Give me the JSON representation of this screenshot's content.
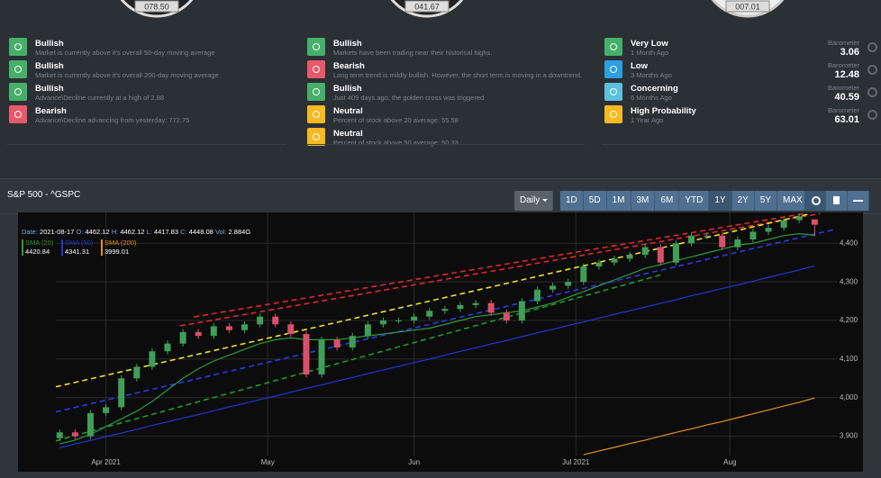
{
  "gauges": [
    "078.50",
    "041.67",
    "007.01"
  ],
  "signals": [
    [
      {
        "title": "Bullish",
        "text": "Market is currently above it's overall 50-day moving average",
        "color": "#46b06a"
      },
      {
        "title": "Bullish",
        "text": "Market is currently above it's overall 200-day moving average",
        "color": "#46b06a"
      },
      {
        "title": "Bullish",
        "text": "Advance\\Decline currently at a high of 2.88",
        "color": "#46b06a"
      },
      {
        "title": "Bearish",
        "text": "Advance\\Decline advancing from yesterday: 772.75",
        "color": "#e8596a"
      }
    ],
    [
      {
        "title": "Bullish",
        "text": "Markets have been trading near their historical highs.",
        "color": "#46b06a"
      },
      {
        "title": "Bearish",
        "text": "Long term trend is mildly bullish. However, the short term is moving in a downtrend.",
        "color": "#e8596a"
      },
      {
        "title": "Bullish",
        "text": "Just 409 days ago, the golden cross was triggered",
        "color": "#46b06a"
      },
      {
        "title": "Neutral",
        "text": "Percent of stock above 20 average: 55.58",
        "color": "#f5b921"
      },
      {
        "title": "Neutral",
        "text": "Percent of stock above 50 average: 50.33",
        "color": "#f5b921"
      }
    ]
  ],
  "risk": [
    {
      "title": "Very Low",
      "subtitle": "1 Month Ago",
      "label": "Barometer",
      "value": "3.06",
      "color": "#46b06a"
    },
    {
      "title": "Low",
      "subtitle": "3 Months Ago",
      "label": "Barometer",
      "value": "12.48",
      "color": "#2d9ee0"
    },
    {
      "title": "Concerning",
      "subtitle": "6 Months Ago",
      "label": "Barometer",
      "value": "40.59",
      "color": "#5bc0de"
    },
    {
      "title": "High Probability",
      "subtitle": "1 Year Ago",
      "label": "Barometer",
      "value": "63.01",
      "color": "#f5b921"
    }
  ],
  "panel": {
    "title": "S&P 500 - ^GSPC",
    "interval": "Daily",
    "ranges": [
      "1D",
      "5D",
      "1M",
      "3M",
      "6M",
      "YTD",
      "1Y",
      "2Y",
      "5Y",
      "MAX"
    ],
    "active_range": "1Y"
  },
  "chart_data": {
    "type": "candlestick",
    "info_labels": [
      "Date:",
      "O:",
      "H:",
      "L:",
      "C:",
      "Vol:"
    ],
    "date": "2021-08-17",
    "volume": "2.884G",
    "x": [
      2,
      4,
      6,
      8,
      10,
      12,
      14,
      16,
      18,
      20,
      22,
      24,
      26,
      28,
      30,
      32,
      34,
      36,
      38,
      40,
      42,
      44,
      46,
      48,
      50,
      52,
      54,
      56,
      58,
      60,
      62,
      64,
      66,
      68,
      70,
      72,
      74,
      76,
      78,
      80,
      82,
      84,
      86,
      88,
      90,
      92,
      94,
      96,
      98,
      100
    ],
    "open": [
      3895,
      3910,
      3900,
      3960,
      3975,
      4050,
      4080,
      4120,
      4140,
      4170,
      4160,
      4185,
      4175,
      4190,
      4210,
      4190,
      4165,
      4060,
      4150,
      4130,
      4160,
      4190,
      4200,
      4200,
      4210,
      4225,
      4230,
      4240,
      4245,
      4220,
      4200,
      4250,
      4280,
      4290,
      4300,
      4340,
      4350,
      4360,
      4370,
      4390,
      4350,
      4400,
      4420,
      4420,
      4390,
      4410,
      4430,
      4440,
      4460,
      4462.12
    ],
    "high": [
      3918,
      3918,
      3968,
      3983,
      4058,
      4088,
      4128,
      4148,
      4178,
      4178,
      4193,
      4193,
      4198,
      4218,
      4218,
      4198,
      4173,
      4158,
      4158,
      4168,
      4198,
      4208,
      4208,
      4218,
      4233,
      4238,
      4248,
      4253,
      4253,
      4228,
      4258,
      4288,
      4298,
      4308,
      4348,
      4358,
      4368,
      4378,
      4398,
      4398,
      4408,
      4428,
      4428,
      4428,
      4418,
      4438,
      4448,
      4468,
      4478,
      4462.12
    ],
    "low": [
      3887,
      3892,
      3892,
      3952,
      3967,
      4042,
      4072,
      4112,
      4132,
      4152,
      4152,
      4167,
      4167,
      4182,
      4182,
      4157,
      4052,
      4052,
      4122,
      4122,
      4152,
      4182,
      4192,
      4192,
      4202,
      4217,
      4222,
      4232,
      4212,
      4192,
      4192,
      4242,
      4272,
      4282,
      4292,
      4332,
      4342,
      4352,
      4362,
      4342,
      4342,
      4392,
      4412,
      4382,
      4382,
      4402,
      4422,
      4432,
      4452,
      4417.83
    ],
    "close": [
      3910,
      3900,
      3960,
      3975,
      4050,
      4080,
      4120,
      4140,
      4170,
      4160,
      4185,
      4175,
      4190,
      4210,
      4190,
      4165,
      4060,
      4150,
      4130,
      4160,
      4190,
      4200,
      4200,
      4210,
      4225,
      4230,
      4240,
      4245,
      4220,
      4200,
      4250,
      4280,
      4290,
      4300,
      4340,
      4350,
      4360,
      4370,
      4390,
      4350,
      4400,
      4420,
      4420,
      4390,
      4410,
      4430,
      4440,
      4460,
      4470,
      4448.08
    ],
    "up_color": "#3f9e57",
    "down_color": "#d9506a",
    "lines": [
      {
        "name": "SMA (20)",
        "color": "#2e9a3a",
        "values": [
          3880,
          3890,
          3905,
          3925,
          3945,
          3965,
          3990,
          4020,
          4050,
          4075,
          4095,
          4110,
          4125,
          4140,
          4150,
          4155,
          4150,
          4150,
          4150,
          4155,
          4160,
          4165,
          4170,
          4175,
          4180,
          4190,
          4200,
          4210,
          4215,
          4220,
          4225,
          4235,
          4245,
          4260,
          4275,
          4290,
          4305,
          4320,
          4335,
          4345,
          4355,
          4365,
          4375,
          4385,
          4395,
          4400,
          4410,
          4420,
          4425,
          4420.84
        ]
      },
      {
        "name": "SMA (50)",
        "color": "#2437d6",
        "values": [
          3870,
          3880,
          3889,
          3899,
          3908,
          3918,
          3928,
          3937,
          3947,
          3956,
          3966,
          3976,
          3985,
          3995,
          4004,
          4014,
          4024,
          4033,
          4043,
          4052,
          4062,
          4072,
          4081,
          4091,
          4100,
          4110,
          4120,
          4129,
          4139,
          4148,
          4158,
          4168,
          4177,
          4187,
          4196,
          4206,
          4216,
          4225,
          4235,
          4244,
          4254,
          4264,
          4273,
          4283,
          4292,
          4302,
          4312,
          4321,
          4331,
          4341.31
        ]
      },
      {
        "name": "SMA (200)",
        "color": "#e8901c",
        "values": [
          null,
          null,
          null,
          null,
          null,
          null,
          null,
          null,
          null,
          null,
          null,
          null,
          null,
          null,
          null,
          null,
          null,
          null,
          null,
          null,
          null,
          null,
          null,
          null,
          null,
          null,
          null,
          null,
          null,
          null,
          null,
          null,
          null,
          null,
          3852,
          3862,
          3871,
          3881,
          3890,
          3900,
          3910,
          3919,
          3929,
          3938,
          3948,
          3958,
          3968,
          3978,
          3988,
          3999.01
        ]
      }
    ],
    "trendlines": [
      {
        "color": "#e0262a",
        "x": [
          17.6,
          100.7
        ],
        "y": [
          4186,
          4477
        ]
      },
      {
        "color": "#e0262a",
        "x": [
          19.4,
          98.9
        ],
        "y": [
          4209,
          4478
        ]
      },
      {
        "color": "#f0e02a",
        "x": [
          1.5,
          99.5
        ],
        "y": [
          4028,
          4477
        ]
      },
      {
        "color": "#2a3be8",
        "x": [
          1.5,
          102.4
        ],
        "y": [
          3963,
          4435
        ]
      },
      {
        "color": "#1f9a30",
        "x": [
          1.5,
          80.2
        ],
        "y": [
          3888,
          4319
        ]
      }
    ],
    "xlim": [
      1.5,
      103
    ],
    "ylim": [
      3850,
      4480
    ],
    "xticks": [
      {
        "value": 8,
        "label": "Apr 2021"
      },
      {
        "value": 29,
        "label": "May"
      },
      {
        "value": 48,
        "label": "Jun"
      },
      {
        "value": 69,
        "label": "Jul 2021"
      },
      {
        "value": 89,
        "label": "Aug"
      }
    ],
    "yticks": [
      {
        "value": 3900,
        "label": "3,900"
      },
      {
        "value": 4000,
        "label": "4,000"
      },
      {
        "value": 4100,
        "label": "4,100"
      },
      {
        "value": 4200,
        "label": "4,200"
      },
      {
        "value": 4300,
        "label": "4,300"
      },
      {
        "value": 4400,
        "label": "4,400"
      }
    ],
    "grid": true
  }
}
